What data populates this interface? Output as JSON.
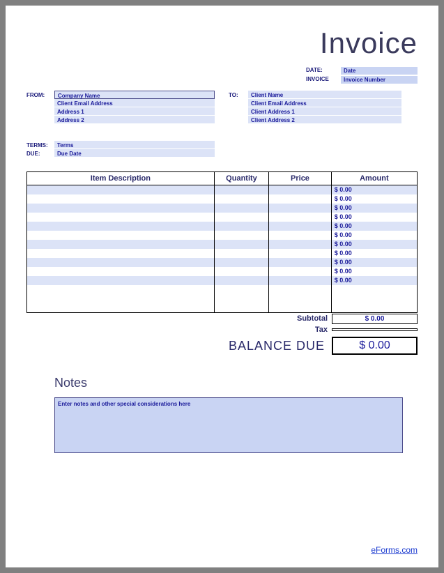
{
  "title": "Invoice",
  "meta": {
    "date_label": "DATE:",
    "date_value": "Date",
    "invoice_label": "INVOICE",
    "invoice_value": "Invoice Number"
  },
  "from": {
    "label": "FROM:",
    "company": "Company Name",
    "email": "Client Email Address",
    "addr1": "Address 1",
    "addr2": "Address 2"
  },
  "to": {
    "label": "TO:",
    "name": "Client Name",
    "email": "Client Email Address",
    "addr1": "Client Address 1",
    "addr2": "Client Address 2"
  },
  "terms": {
    "terms_label": "TERMS:",
    "terms_value": "Terms",
    "due_label": "DUE:",
    "due_value": "Due Date"
  },
  "table": {
    "headers": {
      "desc": "Item Description",
      "qty": "Quantity",
      "price": "Price",
      "amount": "Amount"
    },
    "rows": [
      {
        "amount": "$ 0.00"
      },
      {
        "amount": "$ 0.00"
      },
      {
        "amount": "$ 0.00"
      },
      {
        "amount": "$ 0.00"
      },
      {
        "amount": "$ 0.00"
      },
      {
        "amount": "$ 0.00"
      },
      {
        "amount": "$ 0.00"
      },
      {
        "amount": "$ 0.00"
      },
      {
        "amount": "$ 0.00"
      },
      {
        "amount": "$ 0.00"
      },
      {
        "amount": "$ 0.00"
      }
    ]
  },
  "totals": {
    "subtotal_label": "Subtotal",
    "subtotal_value": "$ 0.00",
    "tax_label": "Tax",
    "tax_value": "",
    "balance_label": "BALANCE DUE",
    "balance_value": "$ 0.00"
  },
  "notes": {
    "title": "Notes",
    "placeholder": "Enter notes and other special considerations here"
  },
  "footer_link": "eForms.com",
  "colors": {
    "field_bg": "#dce3f7",
    "meta_bg": "#c9d4f3",
    "text_blue": "#1a1a9a",
    "label_blue": "#1a1a7a",
    "heading": "#3a3a5c"
  }
}
